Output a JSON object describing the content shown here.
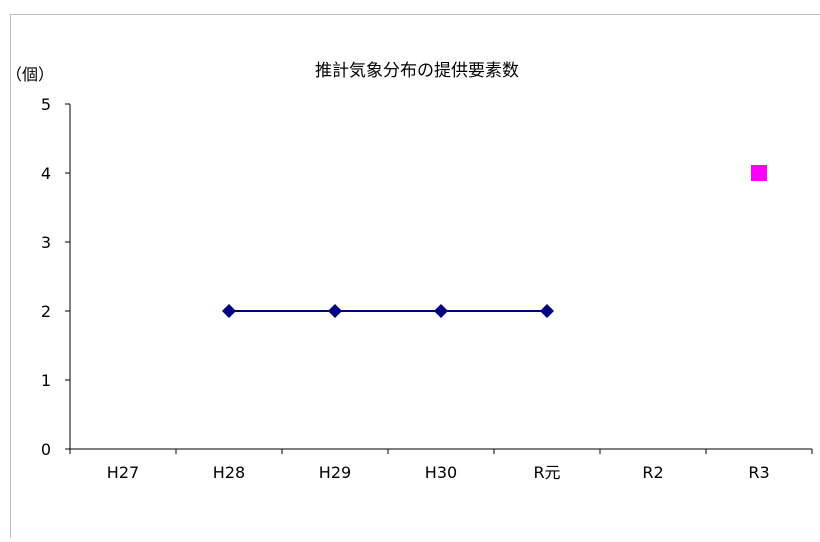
{
  "chart_data": {
    "type": "line",
    "title": "推計気象分布の提供要素数",
    "ylabel": "（個）",
    "xlabel": "",
    "categories": [
      "H27",
      "H28",
      "H29",
      "H30",
      "R元",
      "R2",
      "R3"
    ],
    "y_ticks": [
      "0",
      "1",
      "2",
      "3",
      "4",
      "5"
    ],
    "ylim": [
      0,
      5
    ],
    "grid": false,
    "legend": "none",
    "series": [
      {
        "values": [
          null,
          2,
          2,
          2,
          2,
          null,
          null
        ],
        "color": "#000080",
        "marker": "diamond",
        "line": true
      },
      {
        "values": [
          null,
          null,
          null,
          null,
          null,
          null,
          4
        ],
        "color": "#ff00ff",
        "marker": "square",
        "line": false
      }
    ]
  }
}
